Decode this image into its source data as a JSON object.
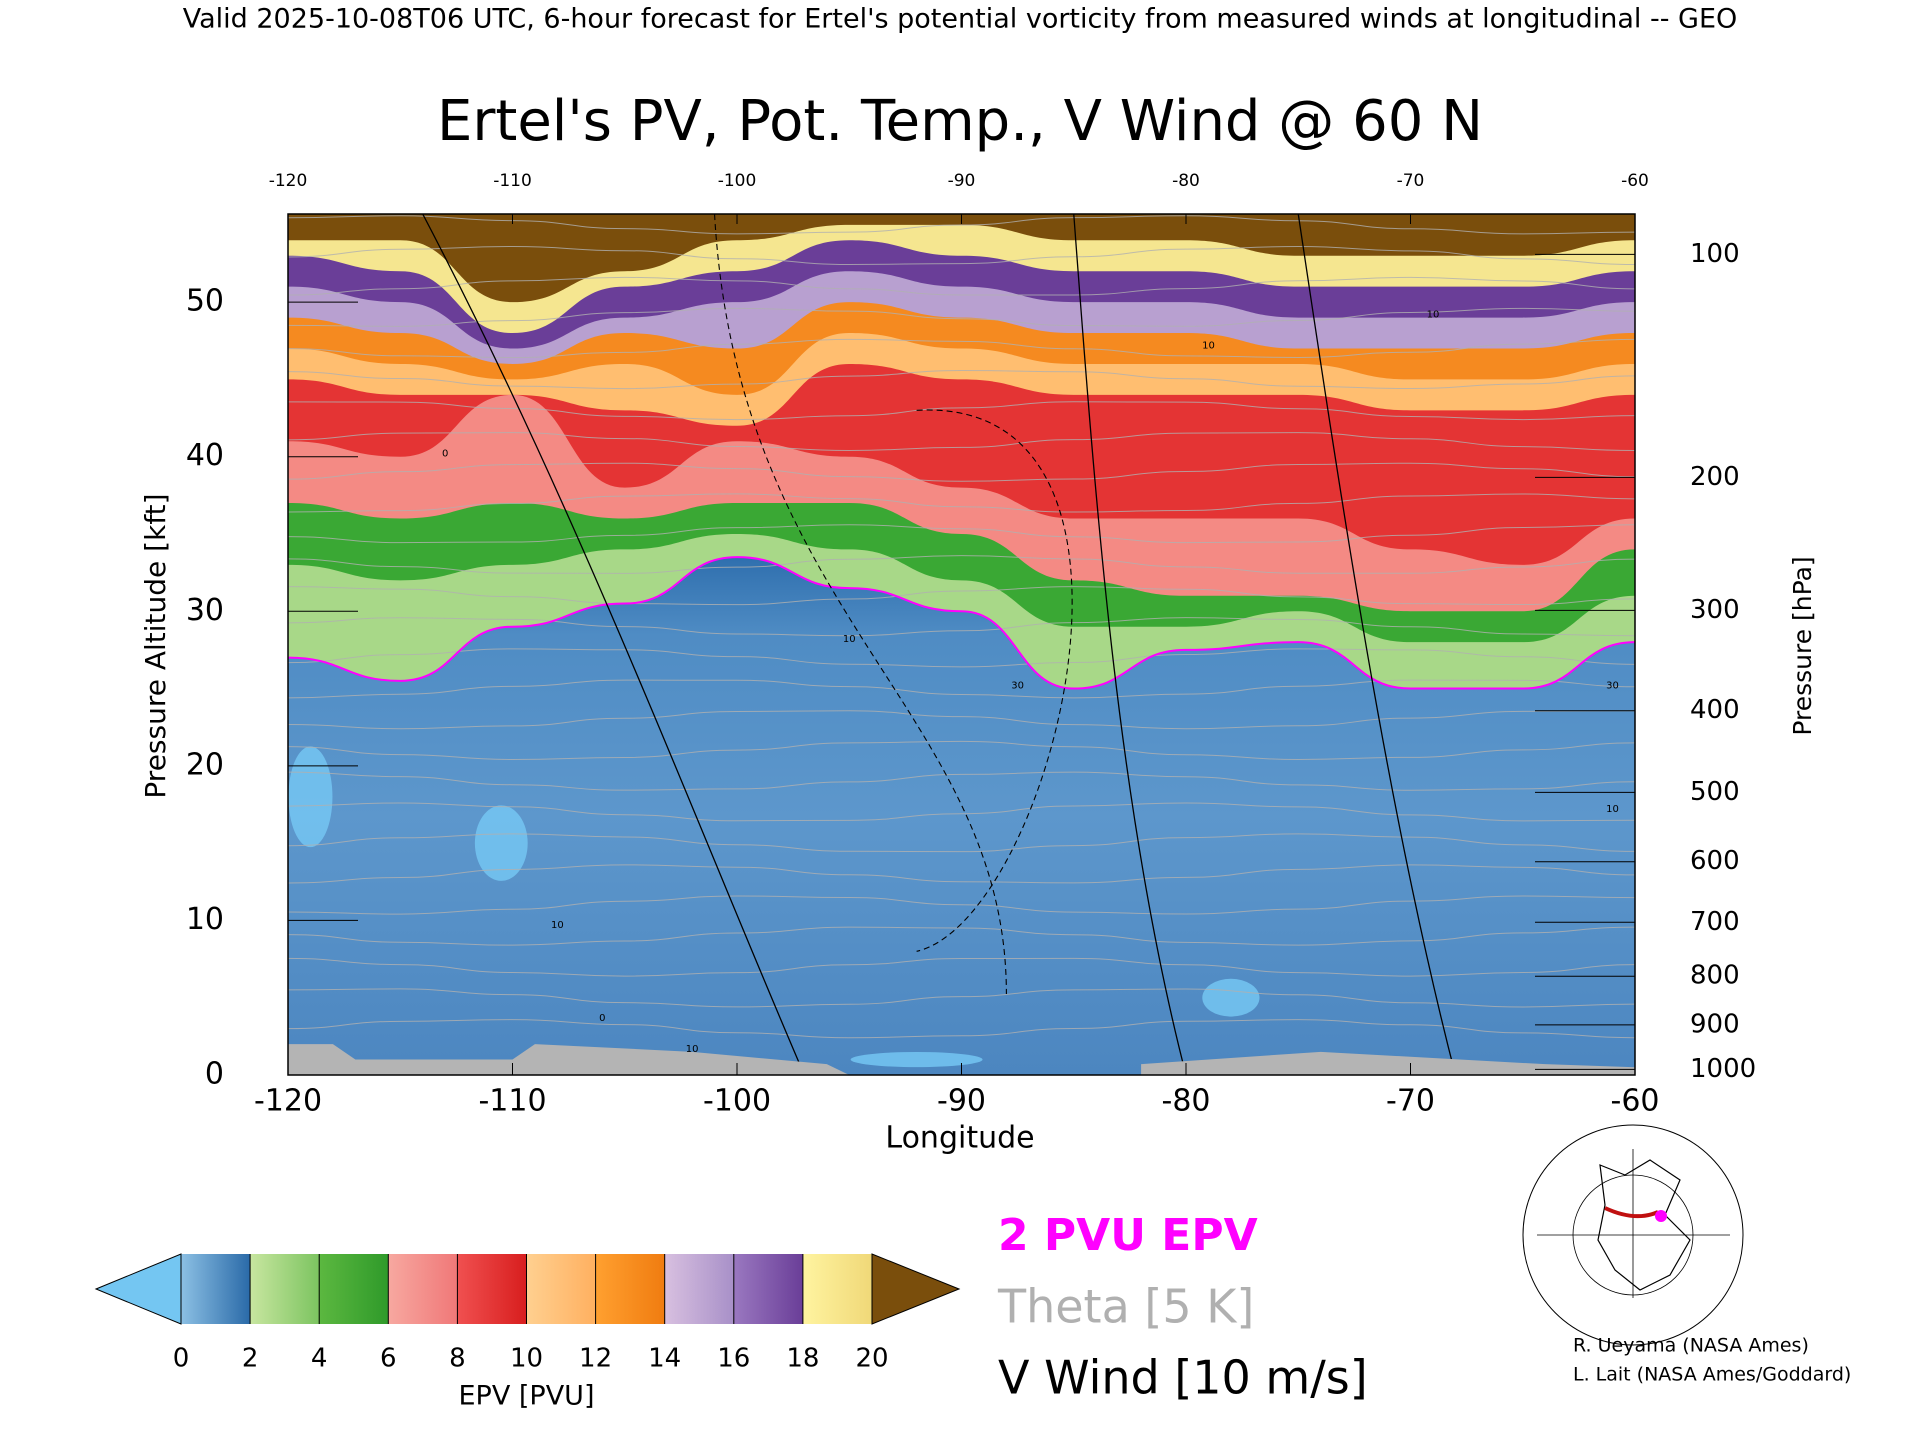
{
  "header": "Valid 2025-10-08T06 UTC, 6-hour forecast for Ertel's potential vorticity from measured winds at longitudinal -- GEO",
  "chart_data": {
    "type": "contour",
    "title": "Ertel's PV, Pot. Temp., V Wind @ 60 N",
    "xlabel": "Longitude",
    "ylabel": "Pressure Altitude [kft]",
    "y2label": "Pressure [hPa]",
    "xlim": [
      -120,
      -60
    ],
    "xticks": [
      -120,
      -110,
      -100,
      -90,
      -80,
      -70,
      -60
    ],
    "ylim": [
      0,
      55.7
    ],
    "yticks": [
      0,
      10,
      20,
      30,
      40,
      50
    ],
    "y2lim": [
      1013.25,
      88.2
    ],
    "y2ticks": [
      100,
      200,
      300,
      400,
      500,
      600,
      700,
      800,
      900,
      1000
    ],
    "contour_labels": [
      "10",
      "0",
      "10",
      "30",
      "10",
      "0",
      "10",
      "10",
      "30",
      "10"
    ],
    "colorbar": {
      "label": "EPV [PVU]",
      "ticks": [
        0,
        2,
        4,
        6,
        8,
        10,
        12,
        14,
        16,
        18,
        20
      ],
      "under_color": "#74c6f2",
      "over_color": "#7a4e0c",
      "bin_colors": [
        [
          "#8cc0e4",
          "#2a6aa8"
        ],
        [
          "#c8e6a0",
          "#7cc460"
        ],
        [
          "#5cb840",
          "#2f9a2a"
        ],
        [
          "#f7a8a0",
          "#f07878"
        ],
        [
          "#f05050",
          "#d81e1e"
        ],
        [
          "#ffd090",
          "#ffb060"
        ],
        [
          "#ffa030",
          "#f07c10"
        ],
        [
          "#d8c0e0",
          "#a890c8"
        ],
        [
          "#9a78c0",
          "#6a3e98"
        ],
        [
          "#fff4a0",
          "#f0d878"
        ]
      ]
    },
    "legend": [
      {
        "name": "2 PVU EPV",
        "color": "#ff00ff"
      },
      {
        "name": "Theta [5 K]",
        "color": "#b0b0b0"
      },
      {
        "name": "V Wind [10 m/s]",
        "color": "#000000"
      }
    ]
  },
  "credits": [
    "R. Ueyama (NASA Ames)",
    "L. Lait (NASA Ames/Goddard)"
  ]
}
